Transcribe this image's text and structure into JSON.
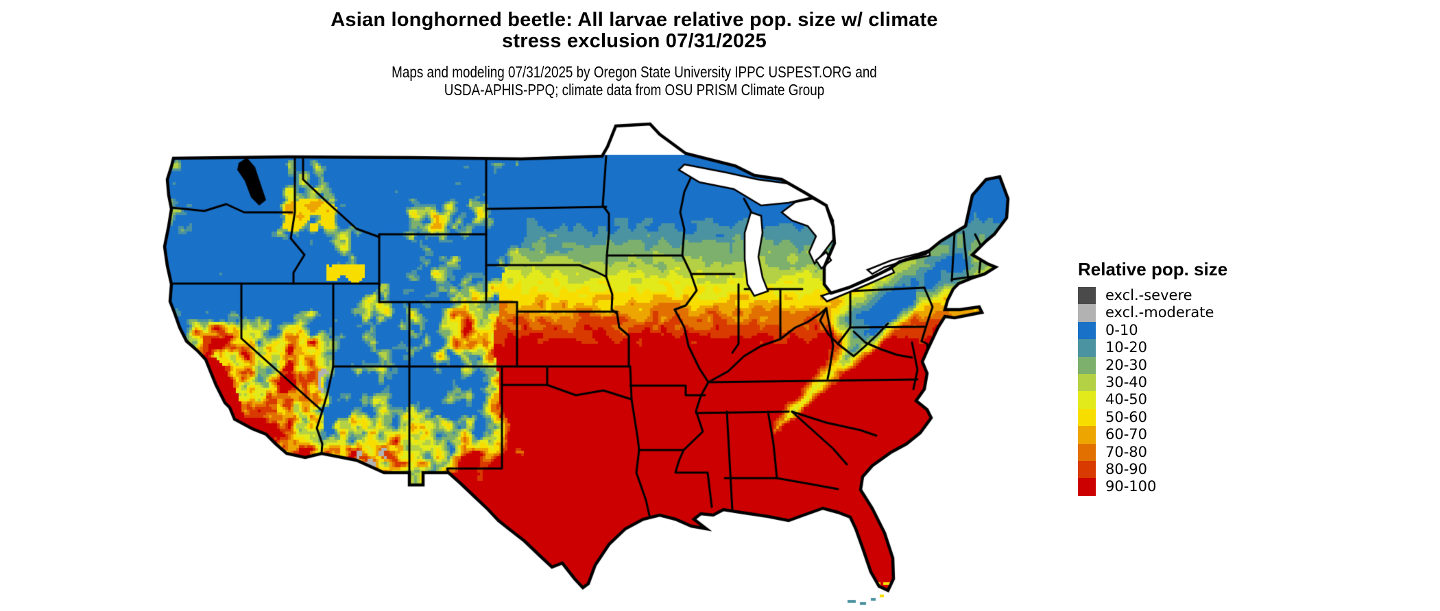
{
  "header": {
    "title_line1": "Asian longhorned beetle: All larvae relative pop. size w/ climate",
    "title_line2": "stress exclusion 07/31/2025",
    "subtitle_line1": "Maps and modeling 07/31/2025 by Oregon State University IPPC USPEST.ORG and",
    "subtitle_line2": "USDA-APHIS-PPQ; climate data from OSU PRISM Climate Group"
  },
  "legend": {
    "title": "Relative pop. size",
    "items": [
      {
        "label": "excl.-severe",
        "color": "#4a4a4a"
      },
      {
        "label": "excl.-moderate",
        "color": "#b2b2b2"
      },
      {
        "label": "0-10",
        "color": "#1a71c8"
      },
      {
        "label": "10-20",
        "color": "#4b93a0"
      },
      {
        "label": "20-30",
        "color": "#7cb06c"
      },
      {
        "label": "30-40",
        "color": "#b4d044"
      },
      {
        "label": "40-50",
        "color": "#e2ea1c"
      },
      {
        "label": "50-60",
        "color": "#f8de00"
      },
      {
        "label": "60-70",
        "color": "#eda502"
      },
      {
        "label": "70-80",
        "color": "#e27000"
      },
      {
        "label": "80-90",
        "color": "#d83a00"
      },
      {
        "label": "90-100",
        "color": "#cc0000"
      }
    ]
  },
  "map": {
    "region_label": "Contiguous United States raster map",
    "fill_ramp_low_to_high": [
      "#1a71c8",
      "#4b93a0",
      "#7cb06c",
      "#b4d044",
      "#e2ea1c",
      "#f8de00",
      "#eda502",
      "#e27000",
      "#d83a00",
      "#cc0000"
    ],
    "exclusion_severe_color": "#4a4a4a",
    "exclusion_moderate_color": "#b2b2b2",
    "state_border_color": "#000000",
    "water_color": "#ffffff"
  }
}
